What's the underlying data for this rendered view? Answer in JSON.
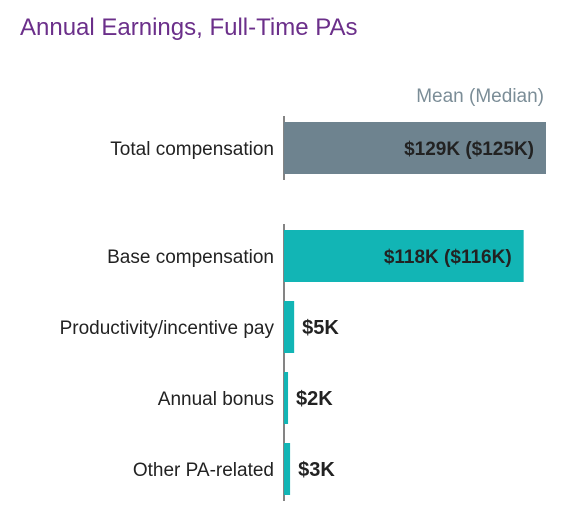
{
  "chart_data": {
    "type": "bar",
    "orientation": "horizontal",
    "title": "Annual Earnings, Full-Time PAs",
    "legend": "Mean (Median)",
    "unit": "thousand USD",
    "groups": [
      {
        "name": "total",
        "items": [
          {
            "category": "Total compensation",
            "value": 129,
            "label": "$129K ($125K)",
            "color": "#6e838f"
          }
        ]
      },
      {
        "name": "components",
        "items": [
          {
            "category": "Base compensation",
            "value": 118,
            "label": "$118K ($116K)",
            "color": "#12b5b5"
          },
          {
            "category": "Productivity/incentive pay",
            "value": 5,
            "label": "$5K",
            "color": "#12b5b5"
          },
          {
            "category": "Annual bonus",
            "value": 2,
            "label": "$2K",
            "color": "#12b5b5"
          },
          {
            "category": "Other PA-related",
            "value": 3,
            "label": "$3K",
            "color": "#12b5b5"
          }
        ]
      }
    ],
    "xlim": [
      0,
      129
    ],
    "grid": false
  }
}
